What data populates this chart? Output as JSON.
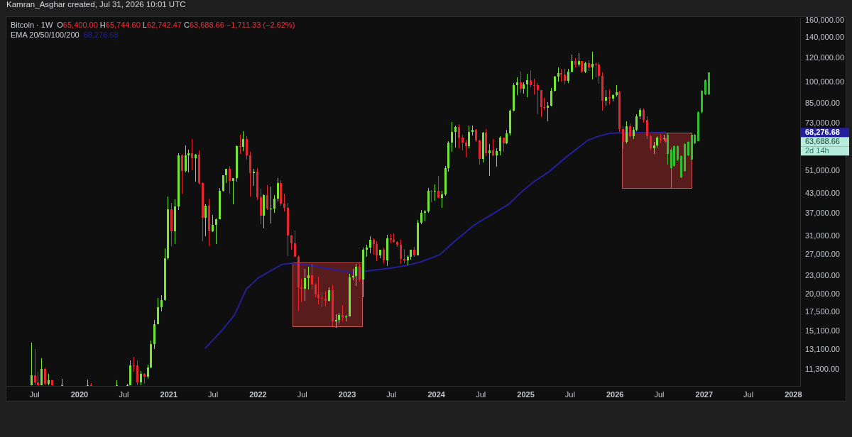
{
  "chart_data": {
    "type": "candlestick",
    "title": "Bitcoin · 1W",
    "subtitle": "O65,400.00 H65,744.60 L62,742.47 C63,688.66 −1,711.33 (−2.62%)",
    "annotations": [
      "Kamran_Asghar created, Jul 31, 2026 10:01 UTC",
      "68,276.68",
      "63,688.66",
      "2d 14h"
    ],
    "xlim": [
      "2019-03-08",
      "2028-01-29"
    ],
    "xticks": [
      {
        "value": "2019-07-01",
        "label": "Jul"
      },
      {
        "value": "2020-01-01",
        "label": "2020"
      },
      {
        "value": "2020-07-01",
        "label": "Jul"
      },
      {
        "value": "2021-01-01",
        "label": "2021"
      },
      {
        "value": "2021-07-01",
        "label": "Jul"
      },
      {
        "value": "2022-01-01",
        "label": "2022"
      },
      {
        "value": "2022-07-01",
        "label": "Jul"
      },
      {
        "value": "2023-01-01",
        "label": "2023"
      },
      {
        "value": "2023-07-01",
        "label": "Jul"
      },
      {
        "value": "2024-01-01",
        "label": "2024"
      },
      {
        "value": "2024-07-01",
        "label": "Jul"
      },
      {
        "value": "2025-01-01",
        "label": "2025"
      },
      {
        "value": "2025-07-01",
        "label": "Jul"
      },
      {
        "value": "2026-01-01",
        "label": "2026"
      },
      {
        "value": "2026-07-01",
        "label": "Jul"
      },
      {
        "value": "2027-01-01",
        "label": "2027"
      },
      {
        "value": "2027-07-01",
        "label": "Jul"
      },
      {
        "value": "2028-01-01",
        "label": "2028"
      }
    ],
    "ylim": [
      9980,
      162500
    ],
    "yticks": [
      {
        "value": 11300,
        "label": "11,300.00"
      },
      {
        "value": 13100,
        "label": "13,100.00"
      },
      {
        "value": 15100,
        "label": "15,100.00"
      },
      {
        "value": 17500,
        "label": "17,500.00"
      },
      {
        "value": 20000,
        "label": "20,000.00"
      },
      {
        "value": 23000,
        "label": "23,000.00"
      },
      {
        "value": 27000,
        "label": "27,000.00"
      },
      {
        "value": 31000,
        "label": "31,000.00"
      },
      {
        "value": 37000,
        "label": "37,000.00"
      },
      {
        "value": 43000,
        "label": "43,000.00"
      },
      {
        "value": 51000,
        "label": "51,000.00"
      },
      {
        "value": 73000,
        "label": "73,000.00"
      },
      {
        "value": 85000,
        "label": "85,000.00"
      },
      {
        "value": 100000,
        "label": "100,000.00"
      },
      {
        "value": 120000,
        "label": "120,000.00"
      },
      {
        "value": 140000,
        "label": "140,000.00"
      },
      {
        "value": 160000,
        "label": "160,000.00"
      }
    ],
    "log": true,
    "legend": "top left",
    "series": [
      {
        "color": "#73e639",
        "x": [
          "2019-06-17",
          "2019-07-29",
          "2019-08-26",
          "2019-10-21",
          "2020-02-03",
          "2020-06-01",
          "2020-07-13",
          "2020-07-27",
          "2020-09-07",
          "2020-10-05",
          "2020-10-19",
          "2020-11-02",
          "2020-11-16",
          "2020-11-30",
          "2020-12-14",
          "2020-12-28",
          "2021-01-25",
          "2021-02-08",
          "2021-03-08",
          "2021-03-22",
          "2021-04-19",
          "2021-05-31",
          "2021-06-28",
          "2021-07-12",
          "2021-07-26",
          "2021-08-09",
          "2021-08-23",
          "2021-09-20",
          "2021-10-04",
          "2021-11-01",
          "2021-12-13",
          "2022-01-24",
          "2022-02-21",
          "2022-03-07",
          "2022-03-21",
          "2022-07-11",
          "2022-07-25",
          "2022-10-17",
          "2022-11-14",
          "2022-11-28",
          "2022-12-26",
          "2023-01-09",
          "2023-01-23",
          "2023-02-06",
          "2023-03-06",
          "2023-03-20",
          "2023-04-03",
          "2023-05-15",
          "2023-06-12",
          "2023-09-04",
          "2023-09-18",
          "2023-10-16",
          "2023-10-30",
          "2023-11-13",
          "2023-11-27",
          "2023-12-25",
          "2024-01-22",
          "2024-02-05",
          "2024-02-19",
          "2024-03-04",
          "2024-03-18",
          "2024-05-13",
          "2024-05-27",
          "2024-07-08",
          "2024-08-05",
          "2024-09-02",
          "2024-09-16",
          "2024-10-14",
          "2024-10-28",
          "2024-11-11",
          "2024-11-25",
          "2024-12-23",
          "2025-01-06",
          "2025-03-31",
          "2025-04-14",
          "2025-04-28",
          "2025-05-12",
          "2025-06-23",
          "2025-07-07",
          "2025-08-04",
          "2025-09-01",
          "2025-09-29",
          "2025-11-24",
          "2025-12-22",
          "2026-01-05",
          "2026-02-16",
          "2026-03-16",
          "2026-03-30",
          "2026-04-13",
          "2026-06-08",
          "2026-06-22",
          "2026-07-20"
        ],
        "ohlc": [
          [
            10050,
            13880,
            10050,
            10820
          ],
          [
            10050,
            12320,
            10050,
            11350
          ],
          [
            10140,
            10920,
            10050,
            10400
          ],
          [
            10050,
            10540,
            10050,
            10050
          ],
          [
            10050,
            10500,
            10050,
            10050
          ],
          [
            10050,
            10430,
            10050,
            10050
          ],
          [
            10050,
            10150,
            10050,
            10050
          ],
          [
            10050,
            12120,
            10050,
            11680
          ],
          [
            10250,
            11180,
            10050,
            10930
          ],
          [
            10680,
            11720,
            10530,
            11500
          ],
          [
            11500,
            14100,
            11420,
            13740
          ],
          [
            13740,
            16500,
            13200,
            15980
          ],
          [
            15980,
            19480,
            15900,
            18180
          ],
          [
            18180,
            19920,
            17600,
            19170
          ],
          [
            19170,
            28400,
            19050,
            26270
          ],
          [
            26270,
            41950,
            26000,
            38150
          ],
          [
            32280,
            41000,
            29250,
            38900
          ],
          [
            38900,
            58350,
            38000,
            57500
          ],
          [
            51000,
            61780,
            50300,
            57350
          ],
          [
            57350,
            60000,
            50400,
            58200
          ],
          [
            56250,
            58000,
            47050,
            57800
          ],
          [
            35700,
            39500,
            31000,
            39100
          ],
          [
            32300,
            36600,
            32100,
            33800
          ],
          [
            33800,
            35500,
            29300,
            35400
          ],
          [
            35400,
            44800,
            35300,
            43800
          ],
          [
            43800,
            49400,
            43600,
            49300
          ],
          [
            49300,
            51900,
            46400,
            51750
          ],
          [
            47260,
            48400,
            39600,
            48200
          ],
          [
            48200,
            62000,
            46900,
            61500
          ],
          [
            61300,
            69000,
            59400,
            65000
          ],
          [
            50100,
            51900,
            45500,
            50800
          ],
          [
            36300,
            42600,
            32900,
            42400
          ],
          [
            38400,
            45400,
            34300,
            38420
          ],
          [
            38420,
            42400,
            37150,
            41300
          ],
          [
            41300,
            48200,
            40500,
            46400
          ],
          [
            20850,
            24280,
            19000,
            22580
          ],
          [
            22580,
            24670,
            20700,
            23170
          ],
          [
            19070,
            21090,
            18900,
            20630
          ],
          [
            16330,
            17190,
            15480,
            16460
          ],
          [
            16460,
            17420,
            16000,
            17130
          ],
          [
            16830,
            17080,
            16330,
            16950
          ],
          [
            16950,
            23370,
            16920,
            22700
          ],
          [
            22700,
            24250,
            22300,
            22930
          ],
          [
            22930,
            25250,
            21350,
            24600
          ],
          [
            22350,
            28450,
            19550,
            28050
          ],
          [
            28050,
            29200,
            26550,
            28450
          ],
          [
            28450,
            31000,
            27250,
            30320
          ],
          [
            26900,
            28100,
            26330,
            28050
          ],
          [
            25850,
            31430,
            24800,
            30500
          ],
          [
            25850,
            26800,
            24900,
            26550
          ],
          [
            26550,
            28050,
            26000,
            27980
          ],
          [
            26850,
            35200,
            26800,
            34500
          ],
          [
            34500,
            37970,
            34100,
            37050
          ],
          [
            37050,
            38000,
            34800,
            37450
          ],
          [
            37450,
            44700,
            37150,
            43800
          ],
          [
            43700,
            45900,
            40750,
            43950
          ],
          [
            41600,
            43850,
            38550,
            42600
          ],
          [
            42600,
            52800,
            42250,
            52150
          ],
          [
            52150,
            64000,
            50600,
            63150
          ],
          [
            63150,
            73800,
            59000,
            68400
          ],
          [
            68400,
            71800,
            60800,
            71300
          ],
          [
            61500,
            71950,
            60650,
            68500
          ],
          [
            68500,
            72000,
            66600,
            69650
          ],
          [
            55850,
            68400,
            54300,
            68200
          ],
          [
            58200,
            62700,
            49000,
            59450
          ],
          [
            57300,
            60650,
            52550,
            59150
          ],
          [
            59150,
            66500,
            57500,
            65600
          ],
          [
            62900,
            69500,
            62450,
            67950
          ],
          [
            67950,
            81500,
            66850,
            80400
          ],
          [
            80400,
            99600,
            80200,
            97900
          ],
          [
            97900,
            104000,
            90800,
            99850
          ],
          [
            95200,
            99950,
            91550,
            98300
          ],
          [
            98300,
            106400,
            89250,
            101300
          ],
          [
            82400,
            86100,
            74500,
            83750
          ],
          [
            83750,
            95750,
            83050,
            93750
          ],
          [
            93750,
            104950,
            92900,
            104100
          ],
          [
            104100,
            111950,
            100700,
            107000
          ],
          [
            100950,
            110500,
            99600,
            108200
          ],
          [
            108200,
            123200,
            107500,
            117400
          ],
          [
            114200,
            124450,
            112700,
            117500
          ],
          [
            108250,
            116800,
            107250,
            115300
          ],
          [
            112150,
            126200,
            102000,
            115200
          ],
          [
            86800,
            94150,
            83800,
            89400
          ],
          [
            88200,
            91000,
            86500,
            90800
          ],
          [
            90800,
            97700,
            89800,
            92800
          ],
          [
            63500,
            74200,
            62800,
            71500
          ],
          [
            66500,
            71000,
            65000,
            69500
          ],
          [
            69500,
            78500,
            68800,
            77000
          ],
          [
            77000,
            82500,
            75500,
            81000
          ],
          [
            60500,
            63500,
            58000,
            62000
          ],
          [
            62000,
            66500,
            61000,
            65500
          ],
          [
            65000,
            66900,
            64300,
            65400
          ]
        ]
      },
      {
        "color": "#e8262e",
        "x": [
          "2019-07-01",
          "2019-07-15",
          "2019-08-12",
          "2019-09-09",
          "2020-02-17",
          "2020-08-10",
          "2020-08-24",
          "2020-09-21",
          "2021-01-11",
          "2021-02-22",
          "2021-04-05",
          "2021-05-03",
          "2021-05-17",
          "2021-06-14",
          "2021-09-06",
          "2021-10-18",
          "2021-11-15",
          "2021-11-29",
          "2021-12-27",
          "2022-01-10",
          "2022-02-07",
          "2022-04-04",
          "2022-04-18",
          "2022-05-02",
          "2022-05-16",
          "2022-05-30",
          "2022-06-13",
          "2022-06-27",
          "2022-08-08",
          "2022-08-22",
          "2022-09-05",
          "2022-09-19",
          "2022-10-03",
          "2022-10-31",
          "2022-12-12",
          "2023-02-20",
          "2023-04-17",
          "2023-05-01",
          "2023-05-29",
          "2023-06-26",
          "2023-07-10",
          "2023-07-24",
          "2023-08-07",
          "2023-08-21",
          "2023-10-02",
          "2023-12-11",
          "2024-01-08",
          "2024-04-01",
          "2024-04-15",
          "2024-04-29",
          "2024-06-10",
          "2024-06-24",
          "2024-07-22",
          "2024-08-19",
          "2024-09-30",
          "2024-12-09",
          "2025-01-20",
          "2025-02-03",
          "2025-02-17",
          "2025-03-03",
          "2025-03-17",
          "2025-05-26",
          "2025-06-09",
          "2025-07-21",
          "2025-08-18",
          "2025-09-15",
          "2025-10-13",
          "2025-10-27",
          "2025-11-10",
          "2025-12-08",
          "2026-01-19",
          "2026-02-02",
          "2026-03-02",
          "2026-04-27",
          "2026-05-11",
          "2026-05-25",
          "2026-07-06",
          "2026-07-27"
        ],
        "ohlc": [
          [
            10820,
            13180,
            10050,
            10250
          ],
          [
            10250,
            11100,
            10050,
            10050
          ],
          [
            11350,
            11450,
            10050,
            10140
          ],
          [
            10400,
            10450,
            10050,
            10050
          ],
          [
            10050,
            10200,
            10050,
            10050
          ],
          [
            11680,
            12470,
            11130,
            11650
          ],
          [
            11650,
            12090,
            10050,
            10250
          ],
          [
            10930,
            10990,
            10140,
            10680
          ],
          [
            38150,
            40100,
            28850,
            32280
          ],
          [
            57500,
            57550,
            43000,
            51000
          ],
          [
            58200,
            64850,
            51300,
            56250
          ],
          [
            57800,
            59600,
            46000,
            46450
          ],
          [
            46450,
            46650,
            30000,
            35700
          ],
          [
            39100,
            41300,
            28800,
            32300
          ],
          [
            51750,
            52920,
            42800,
            47260
          ],
          [
            61500,
            67000,
            58000,
            61300
          ],
          [
            65000,
            66300,
            55600,
            57250
          ],
          [
            57250,
            59100,
            42000,
            50100
          ],
          [
            50800,
            52100,
            40800,
            41850
          ],
          [
            41850,
            44450,
            34000,
            36300
          ],
          [
            42400,
            45850,
            38000,
            38400
          ],
          [
            46400,
            47500,
            39200,
            39700
          ],
          [
            39700,
            42950,
            37550,
            38450
          ],
          [
            38450,
            40000,
            26700,
            31300
          ],
          [
            31300,
            31350,
            28000,
            29450
          ],
          [
            29450,
            32400,
            26560,
            26600
          ],
          [
            26600,
            26900,
            17620,
            21050
          ],
          [
            21050,
            22500,
            18800,
            20850
          ],
          [
            23170,
            25200,
            20800,
            21530
          ],
          [
            21530,
            21800,
            19550,
            19990
          ],
          [
            19990,
            22800,
            18540,
            19420
          ],
          [
            19420,
            20350,
            18150,
            19310
          ],
          [
            19310,
            20480,
            18200,
            19070
          ],
          [
            20630,
            21480,
            15590,
            16330
          ],
          [
            17130,
            18390,
            16300,
            16830
          ],
          [
            24600,
            25230,
            21970,
            22350
          ],
          [
            30320,
            30500,
            26950,
            29250
          ],
          [
            29250,
            29850,
            25800,
            26900
          ],
          [
            28050,
            28450,
            25350,
            25850
          ],
          [
            30500,
            31500,
            29500,
            30170
          ],
          [
            30170,
            31800,
            29550,
            29800
          ],
          [
            29800,
            29990,
            28600,
            29050
          ],
          [
            29050,
            30250,
            25150,
            26100
          ],
          [
            26100,
            28150,
            25350,
            25850
          ],
          [
            27980,
            28600,
            26550,
            26850
          ],
          [
            43800,
            44000,
            40200,
            43700
          ],
          [
            43950,
            49050,
            41500,
            41600
          ],
          [
            71300,
            72800,
            60650,
            65700
          ],
          [
            65700,
            67250,
            59600,
            63100
          ],
          [
            63100,
            64750,
            56500,
            61500
          ],
          [
            69650,
            70200,
            63400,
            64250
          ],
          [
            64250,
            64500,
            53500,
            55850
          ],
          [
            68200,
            70000,
            57100,
            58200
          ],
          [
            59450,
            65050,
            57200,
            57300
          ],
          [
            65600,
            65600,
            58900,
            62900
          ],
          [
            99850,
            108350,
            92200,
            95200
          ],
          [
            101300,
            109600,
            96200,
            97700
          ],
          [
            97700,
            102500,
            91250,
            97550
          ],
          [
            97550,
            99500,
            78250,
            94250
          ],
          [
            94250,
            94400,
            76600,
            82600
          ],
          [
            82600,
            88750,
            81150,
            82400
          ],
          [
            107000,
            110400,
            100400,
            105750
          ],
          [
            105750,
            110500,
            98200,
            100950
          ],
          [
            117400,
            120250,
            111900,
            114200
          ],
          [
            117500,
            117600,
            107350,
            108250
          ],
          [
            115300,
            117900,
            108650,
            112150
          ],
          [
            115200,
            116000,
            103500,
            114500
          ],
          [
            114500,
            116400,
            98900,
            104700
          ],
          [
            104700,
            107500,
            80600,
            86800
          ],
          [
            89400,
            94600,
            84400,
            88200
          ],
          [
            92800,
            93500,
            68500,
            70000
          ],
          [
            70000,
            71500,
            60300,
            63500
          ],
          [
            71500,
            73000,
            65500,
            66500
          ],
          [
            81000,
            82000,
            73500,
            75000
          ],
          [
            75000,
            77000,
            65000,
            66500
          ],
          [
            66500,
            67000,
            59500,
            60500
          ],
          [
            65500,
            67500,
            63000,
            65000
          ],
          [
            65400,
            65744.6,
            62742.47,
            63688.66
          ]
        ]
      },
      {
        "color": "#2fbf2f",
        "x": [
          "2026-08-03",
          "2026-08-17",
          "2026-08-31",
          "2026-09-14",
          "2026-09-28",
          "2026-10-12",
          "2026-10-26",
          "2026-11-09",
          "2026-11-23",
          "2026-12-07",
          "2026-12-21",
          "2027-01-04",
          "2027-01-18"
        ],
        "ohlc": [
          [
            58000,
            68000,
            53600,
            67000
          ],
          [
            52000,
            61000,
            44500,
            60000
          ],
          [
            53000,
            62000,
            52700,
            61500
          ],
          [
            55500,
            62000,
            55000,
            61500
          ],
          [
            48500,
            57500,
            48200,
            57000
          ],
          [
            51000,
            63000,
            50800,
            62500
          ],
          [
            57500,
            64000,
            57000,
            63500
          ],
          [
            55500,
            67600,
            55300,
            67000
          ],
          [
            63000,
            67500,
            62500,
            67000
          ],
          [
            64000,
            80000,
            63800,
            79500
          ],
          [
            79500,
            94000,
            79000,
            93500
          ],
          [
            91000,
            102000,
            90500,
            101500
          ],
          [
            91000,
            108000,
            90500,
            107500
          ]
        ]
      },
      {
        "type": "line",
        "name": "EMA 20/50/100/200",
        "color": "#24209a",
        "x": [
          "2021-05-31",
          "2021-08-09",
          "2021-09-27",
          "2021-11-14",
          "2022-01-01",
          "2022-02-17",
          "2022-04-09",
          "2022-05-16",
          "2022-07-24",
          "2022-10-27",
          "2023-01-15",
          "2023-03-11",
          "2023-06-28",
          "2023-09-02",
          "2023-10-30",
          "2024-01-15",
          "2024-03-14",
          "2024-06-01",
          "2024-08-18",
          "2024-10-23",
          "2024-12-12",
          "2025-02-06",
          "2025-04-05",
          "2025-06-03",
          "2025-07-22",
          "2025-09-09",
          "2025-10-27",
          "2025-12-14",
          "2026-01-23",
          "2026-04-10",
          "2026-07-27"
        ],
        "values": [
          13300,
          15300,
          17100,
          20800,
          22600,
          23800,
          25100,
          25300,
          25000,
          24200,
          23600,
          23800,
          24400,
          24900,
          25600,
          27000,
          29800,
          33700,
          36800,
          39600,
          43300,
          47200,
          50600,
          55600,
          59700,
          64100,
          66400,
          67900,
          68100,
          68200,
          68276.68
        ]
      }
    ]
  }
}
